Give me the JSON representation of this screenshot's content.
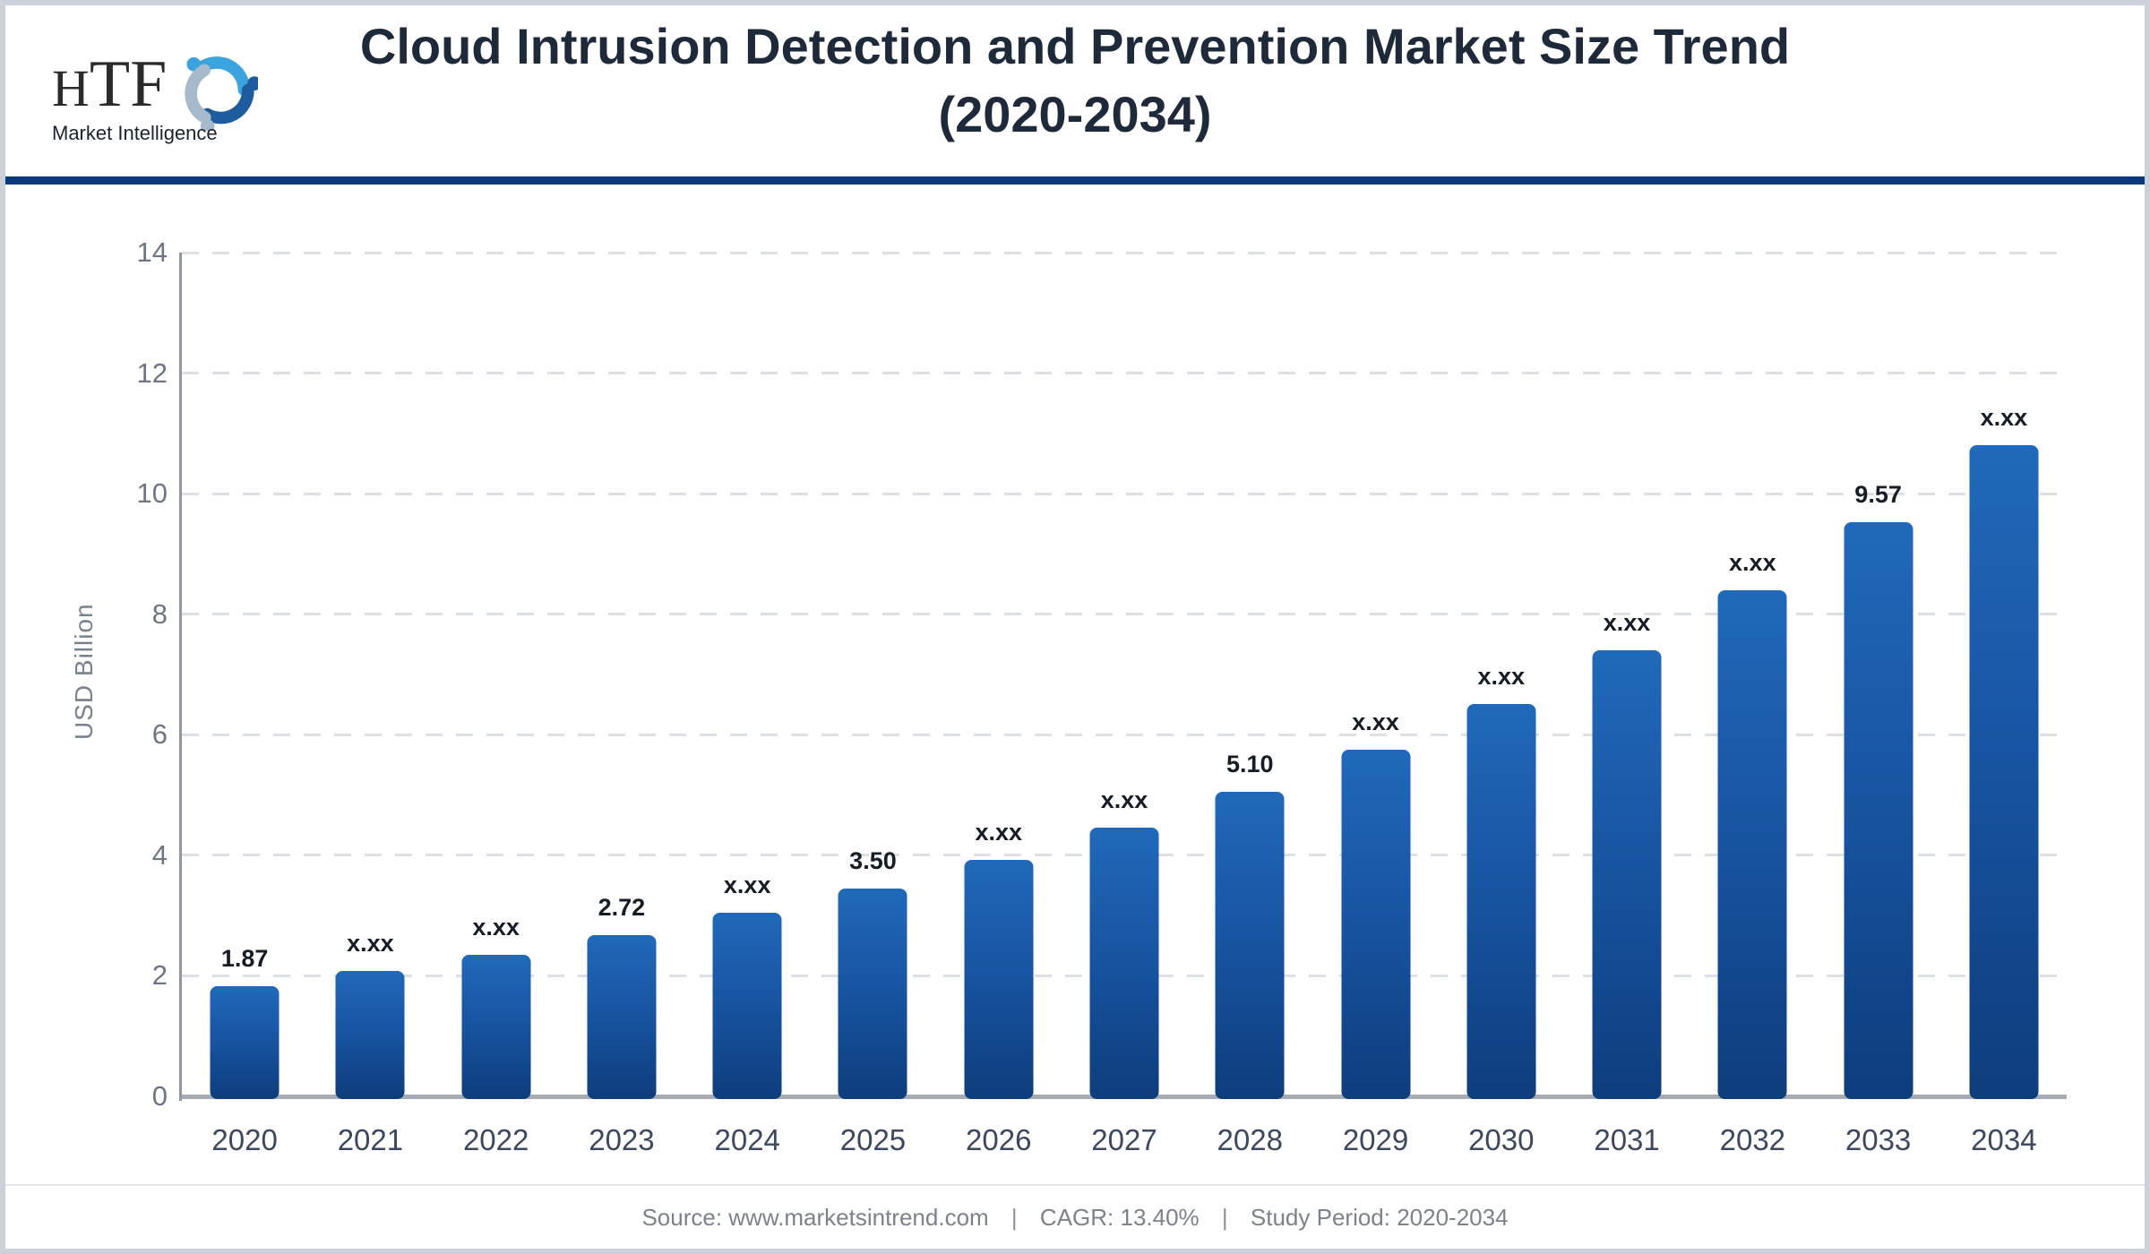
{
  "header": {
    "logo": {
      "brand_h": "H",
      "brand_tf": "TF",
      "tagline": "Market Intelligence",
      "icon": "three-figures-swirl-icon",
      "icon_colors": [
        "#3ba3dd",
        "#a7bacb",
        "#1e5c9f"
      ]
    },
    "title_line1": "Cloud Intrusion Detection and Prevention Market Size Trend",
    "title_line2": "(2020-2034)"
  },
  "chart_data": {
    "type": "bar",
    "title": "Cloud Intrusion Detection and Prevention Market Size Trend (2020-2034)",
    "xlabel": "",
    "ylabel": "USD Billion",
    "ylim": [
      0,
      14
    ],
    "y_ticks": [
      0,
      2,
      4,
      6,
      8,
      10,
      12,
      14
    ],
    "grid": "horizontal-dashed",
    "legend": "none",
    "categories": [
      "2020",
      "2021",
      "2022",
      "2023",
      "2024",
      "2025",
      "2026",
      "2027",
      "2028",
      "2029",
      "2030",
      "2031",
      "2032",
      "2033",
      "2034"
    ],
    "values": [
      1.87,
      2.12,
      2.4,
      2.72,
      3.09,
      3.5,
      3.97,
      4.5,
      5.1,
      5.79,
      6.56,
      7.44,
      8.44,
      9.57,
      10.85
    ],
    "bar_labels": [
      "1.87",
      "x.xx",
      "x.xx",
      "2.72",
      "x.xx",
      "3.50",
      "x.xx",
      "x.xx",
      "5.10",
      "x.xx",
      "x.xx",
      "x.xx",
      "x.xx",
      "9.57",
      "x.xx"
    ],
    "bar_color_top": "#2169ba",
    "bar_color_bottom": "#0e3d7c"
  },
  "footer": {
    "segments": [
      "Source: www.marketsintrend.com",
      "CAGR: 13.40%",
      "Study Period: 2020-2034"
    ],
    "separator": "|"
  },
  "colors": {
    "header_rule": "#0a3a7d",
    "title_text": "#1e2a3a",
    "axis_line": "#9097a3",
    "baseline": "#a6abb4",
    "gridline": "#dcdfe4",
    "tick_text": "#6e7683",
    "year_text": "#3b485e",
    "value_text": "#161d27",
    "footer_text": "#7b828c",
    "outer_border": "#cdd2da"
  }
}
